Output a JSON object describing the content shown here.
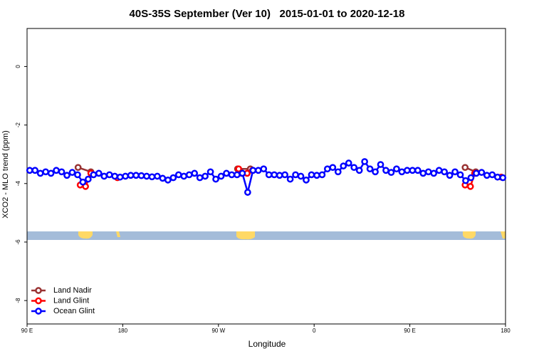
{
  "chart_data": {
    "type": "line",
    "title": "40S-35S September (Ver 10)   2015-01-01 to 2020-12-18",
    "x_label": "Longitude",
    "y_label": "XCO2 - MLO trend (ppm)",
    "xlim": [
      90,
      540
    ],
    "xticks": [
      {
        "value": 90,
        "label": "90 E"
      },
      {
        "value": 180,
        "label": "180"
      },
      {
        "value": 270,
        "label": "90 W"
      },
      {
        "value": 360,
        "label": "0"
      },
      {
        "value": 450,
        "label": "90 E"
      },
      {
        "value": 540,
        "label": "180"
      }
    ],
    "ylim": [
      -8.8,
      1.3
    ],
    "yticks": [
      0,
      -2,
      -4,
      -6,
      -8
    ],
    "legend_position": "bottom-left",
    "series": [
      {
        "name": "Land Nadir",
        "color": "#993333",
        "x": [
          138,
          150,
          null,
          288,
          300,
          null,
          502,
          512
        ],
        "values": [
          -3.45,
          -3.6,
          null,
          -3.5,
          -3.5,
          null,
          -3.45,
          -3.6
        ]
      },
      {
        "name": "Land Glint",
        "color": "#ff0000",
        "x": [
          140,
          145,
          150,
          null,
          175,
          null,
          289,
          292,
          297,
          302,
          null,
          502,
          507,
          511,
          null,
          536
        ],
        "values": [
          -4.05,
          -4.1,
          -3.65,
          null,
          -3.8,
          null,
          -3.5,
          -3.65,
          -3.65,
          -3.55,
          null,
          -4.05,
          -4.1,
          -3.65,
          null,
          -3.78
        ]
      },
      {
        "name": "Ocean Glint",
        "color": "#0000ff",
        "x": [
          92.5,
          97.5,
          102.5,
          107.5,
          112.5,
          117.5,
          122.5,
          127.5,
          132.5,
          137.5,
          142.5,
          147.5,
          152.5,
          157.5,
          162.5,
          167.5,
          172.5,
          177.5,
          182.5,
          187.5,
          192.5,
          197.5,
          202.5,
          207.5,
          212.5,
          217.5,
          222.5,
          227.5,
          232.5,
          237.5,
          242.5,
          247.5,
          252.5,
          257.5,
          262.5,
          267.5,
          272.5,
          277.5,
          282.5,
          287.5,
          292.5,
          297.5,
          302.5,
          307.5,
          312.5,
          317.5,
          322.5,
          327.5,
          332.5,
          337.5,
          342.5,
          347.5,
          352.5,
          357.5,
          362.5,
          367.5,
          372.5,
          377.5,
          382.5,
          387.5,
          392.5,
          397.5,
          402.5,
          407.5,
          412.5,
          417.5,
          422.5,
          427.5,
          432.5,
          437.5,
          442.5,
          447.5,
          452.5,
          457.5,
          462.5,
          467.5,
          472.5,
          477.5,
          482.5,
          487.5,
          492.5,
          497.5,
          502.5,
          507.5,
          512.5,
          517.5,
          522.5,
          527.5,
          532.5,
          537.5
        ],
        "values": [
          -3.55,
          -3.55,
          -3.65,
          -3.6,
          -3.65,
          -3.55,
          -3.6,
          -3.72,
          -3.62,
          -3.7,
          -3.95,
          -3.85,
          -3.7,
          -3.65,
          -3.75,
          -3.7,
          -3.75,
          -3.78,
          -3.75,
          -3.72,
          -3.72,
          -3.73,
          -3.75,
          -3.77,
          -3.75,
          -3.82,
          -3.88,
          -3.8,
          -3.7,
          -3.75,
          -3.7,
          -3.65,
          -3.8,
          -3.75,
          -3.6,
          -3.85,
          -3.75,
          -3.65,
          -3.7,
          -3.7,
          -3.65,
          -4.3,
          -3.55,
          -3.55,
          -3.5,
          -3.7,
          -3.7,
          -3.72,
          -3.7,
          -3.85,
          -3.7,
          -3.75,
          -3.88,
          -3.7,
          -3.72,
          -3.7,
          -3.5,
          -3.45,
          -3.6,
          -3.4,
          -3.3,
          -3.45,
          -3.55,
          -3.25,
          -3.5,
          -3.6,
          -3.35,
          -3.55,
          -3.62,
          -3.5,
          -3.6,
          -3.55,
          -3.55,
          -3.55,
          -3.65,
          -3.6,
          -3.65,
          -3.55,
          -3.6,
          -3.72,
          -3.6,
          -3.7,
          -3.9,
          -3.8,
          -3.65,
          -3.62,
          -3.72,
          -3.7,
          -3.78,
          -3.8
        ]
      }
    ]
  }
}
